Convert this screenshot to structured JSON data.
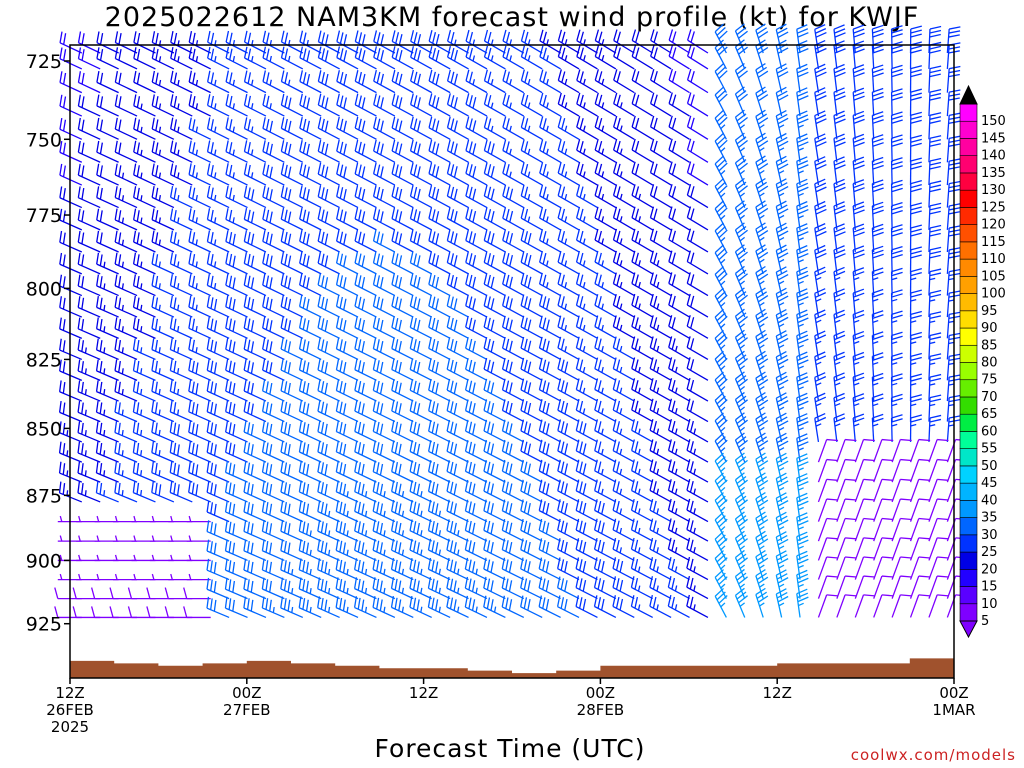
{
  "title": "2025022612 NAM3KM forecast wind profile (kt) for KWJF",
  "credit": "coolwx.com/models",
  "chart_data": {
    "type": "wind-barb-profile",
    "xlabel": "Forecast Time (UTC)",
    "ylabel": "",
    "y_axis": {
      "range": [
        947,
        720
      ],
      "ticks": [
        725,
        750,
        775,
        800,
        825,
        850,
        875,
        900,
        925
      ]
    },
    "x_axis": {
      "range_hours": [
        0,
        60
      ],
      "ticks": [
        {
          "hour": 0,
          "lines": [
            "12Z",
            "26FEB",
            "2025"
          ]
        },
        {
          "hour": 12,
          "lines": [
            "00Z",
            "27FEB"
          ]
        },
        {
          "hour": 24,
          "lines": [
            "12Z"
          ]
        },
        {
          "hour": 36,
          "lines": [
            "00Z",
            "28FEB"
          ]
        },
        {
          "hour": 48,
          "lines": [
            "12Z"
          ]
        },
        {
          "hour": 60,
          "lines": [
            "00Z",
            "1MAR"
          ]
        }
      ]
    },
    "colorbar": {
      "levels": [
        5,
        10,
        15,
        20,
        25,
        30,
        35,
        40,
        45,
        50,
        55,
        60,
        65,
        70,
        75,
        80,
        85,
        90,
        95,
        100,
        105,
        110,
        115,
        120,
        125,
        130,
        135,
        140,
        145,
        150
      ],
      "colors": [
        "#7f00ff",
        "#5a00ff",
        "#2200ff",
        "#0000e6",
        "#0033ff",
        "#0066ff",
        "#0099ff",
        "#00b4ff",
        "#00d2ff",
        "#00e6c8",
        "#00ff99",
        "#00ee44",
        "#33dd00",
        "#66ee00",
        "#99ff00",
        "#ccff00",
        "#ffff00",
        "#ffdd00",
        "#ffbb00",
        "#ffa000",
        "#ff8a00",
        "#ff7000",
        "#ff5000",
        "#ff2a00",
        "#ff0000",
        "#ff0040",
        "#ff0070",
        "#ff00a0",
        "#ff00d0",
        "#ff00ff"
      ]
    },
    "barb_levels": [
      722.5,
      727.5,
      735,
      742.5,
      750,
      757.5,
      765,
      772.5,
      780,
      787.5,
      795,
      802.5,
      810,
      817.5,
      825,
      832.5,
      840,
      847.5,
      855,
      862.5,
      870,
      877.5,
      885,
      892.5,
      900,
      907.5,
      915,
      922.5
    ],
    "barb_time_step_hours": 1.25,
    "wind_field_description_keys": [
      "speed_kt",
      "direction_from_deg"
    ],
    "terrain_surface_pressure": [
      {
        "hour": 0,
        "p": 940
      },
      {
        "hour": 3,
        "p": 941
      },
      {
        "hour": 6,
        "p": 942
      },
      {
        "hour": 9,
        "p": 941
      },
      {
        "hour": 12,
        "p": 940
      },
      {
        "hour": 15,
        "p": 941
      },
      {
        "hour": 18,
        "p": 942
      },
      {
        "hour": 21,
        "p": 943
      },
      {
        "hour": 24,
        "p": 943
      },
      {
        "hour": 27,
        "p": 944
      },
      {
        "hour": 30,
        "p": 945
      },
      {
        "hour": 33,
        "p": 944
      },
      {
        "hour": 36,
        "p": 942
      },
      {
        "hour": 39,
        "p": 942
      },
      {
        "hour": 42,
        "p": 942
      },
      {
        "hour": 45,
        "p": 942
      },
      {
        "hour": 48,
        "p": 941
      },
      {
        "hour": 51,
        "p": 941
      },
      {
        "hour": 54,
        "p": 941
      },
      {
        "hour": 57,
        "p": 939
      },
      {
        "hour": 60,
        "p": 937
      }
    ]
  }
}
